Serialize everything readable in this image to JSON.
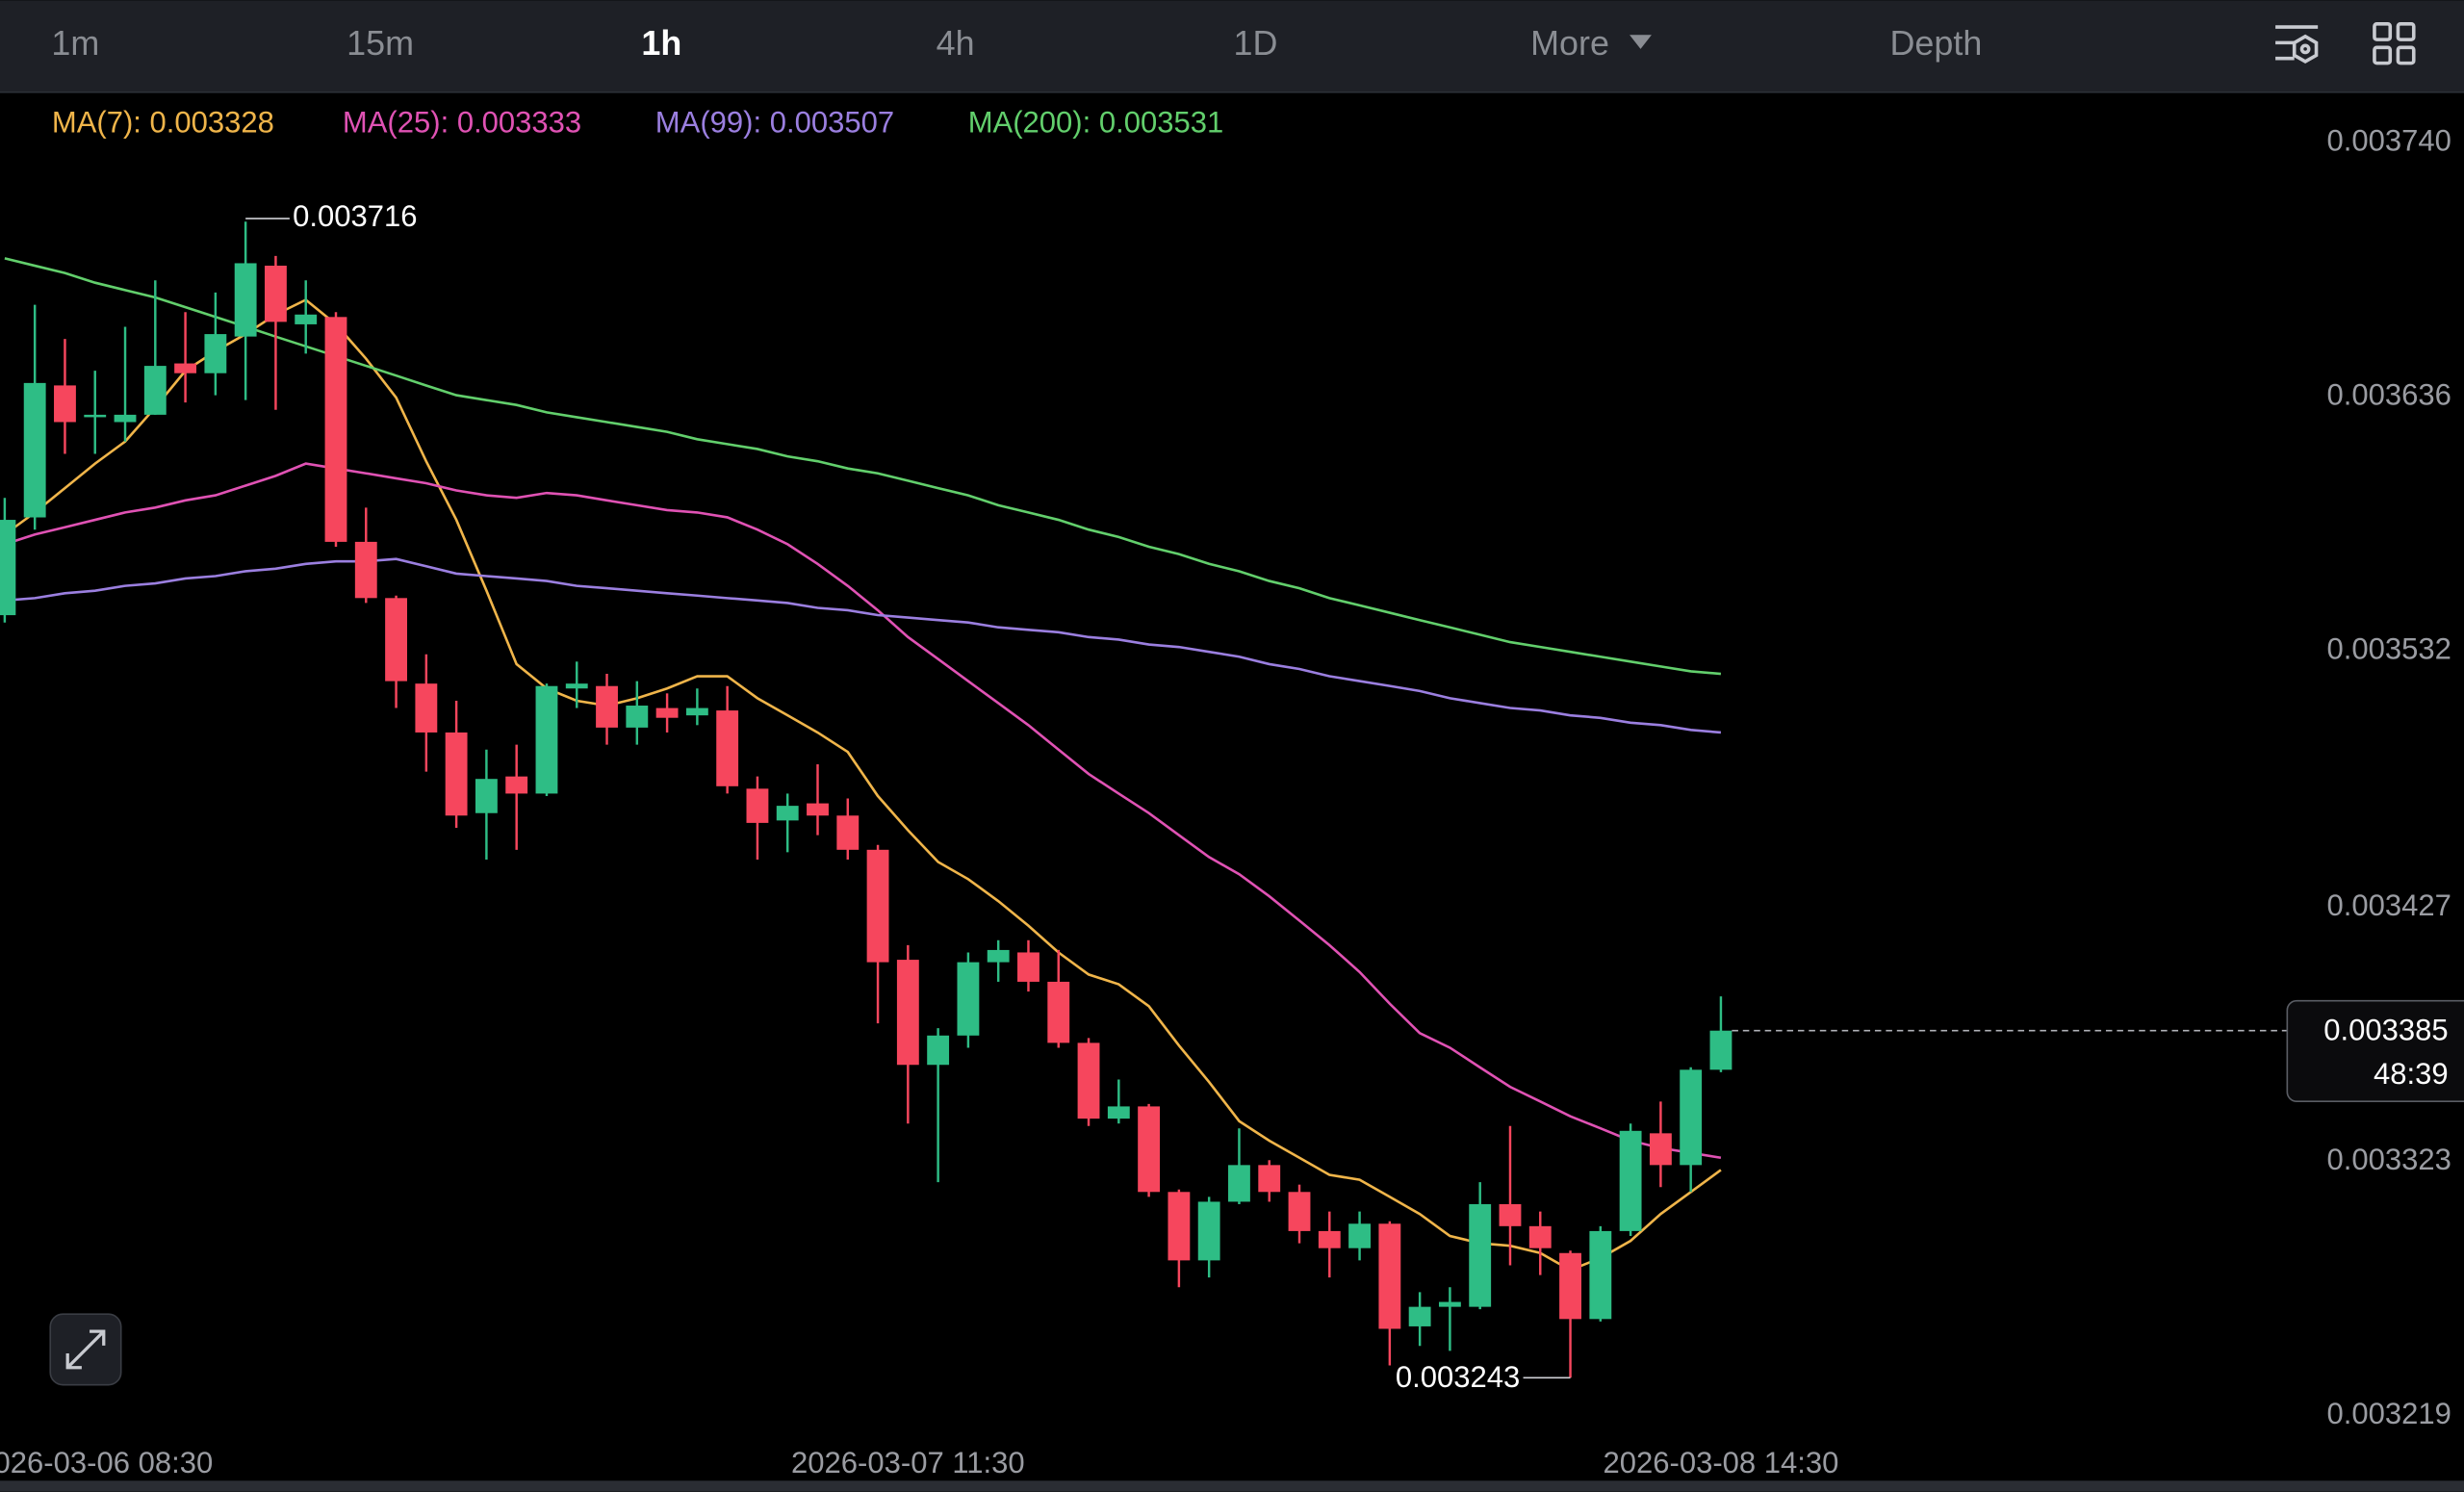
{
  "toolbar": {
    "tabs": [
      {
        "label": "1m"
      },
      {
        "label": "15m"
      },
      {
        "label": "1h",
        "selected": true
      },
      {
        "label": "4h"
      },
      {
        "label": "1D"
      },
      {
        "label": "More"
      },
      {
        "label": "Depth"
      }
    ]
  },
  "chart_data": {
    "type": "candlestick",
    "categories": [
      null,
      null,
      null,
      "2026-03-06 08:30",
      null,
      null,
      null,
      null,
      null,
      null,
      null,
      null,
      null,
      null,
      null,
      null,
      null,
      null,
      null,
      null,
      null,
      null,
      null,
      null,
      null,
      null,
      null,
      null,
      null,
      null,
      "2026-03-07 11:30",
      null,
      null,
      null,
      null,
      null,
      null,
      null,
      null,
      null,
      null,
      null,
      null,
      null,
      null,
      null,
      null,
      null,
      null,
      null,
      null,
      null,
      null,
      null,
      null,
      null,
      null,
      "2026-03-08 14:30"
    ],
    "open": [
      0.003555,
      0.003595,
      0.003649,
      0.003636,
      0.003634,
      0.003637,
      0.003658,
      0.003654,
      0.003669,
      0.003698,
      0.003674,
      0.003677,
      0.003585,
      0.003562,
      0.003527,
      0.003507,
      0.003474,
      0.003489,
      0.003482,
      0.003525,
      0.003526,
      0.003509,
      0.003517,
      0.003514,
      0.003516,
      0.003484,
      0.003471,
      0.003478,
      0.003473,
      0.003459,
      0.003414,
      0.003371,
      0.003383,
      0.003413,
      0.003417,
      0.003405,
      0.00338,
      0.003349,
      0.003354,
      0.003319,
      0.003291,
      0.003315,
      0.00333,
      0.003319,
      0.003303,
      0.003296,
      0.003306,
      0.003264,
      0.003272,
      0.003272,
      0.003314,
      0.003305,
      0.003294,
      0.003267,
      0.003303,
      0.003343,
      0.00333,
      0.003369
    ],
    "high": [
      0.003603,
      0.003682,
      0.003668,
      0.003655,
      0.003673,
      0.003692,
      0.003679,
      0.003687,
      0.003716,
      0.003702,
      0.003692,
      0.003679,
      0.003599,
      0.003563,
      0.003539,
      0.00352,
      0.0035,
      0.003502,
      0.003527,
      0.003536,
      0.003531,
      0.003528,
      0.003523,
      0.003525,
      0.003526,
      0.003489,
      0.003482,
      0.003494,
      0.00348,
      0.003461,
      0.00342,
      0.003386,
      0.003417,
      0.003422,
      0.003422,
      0.003418,
      0.003382,
      0.003365,
      0.003355,
      0.00332,
      0.003317,
      0.003345,
      0.003332,
      0.003322,
      0.003311,
      0.003311,
      0.003307,
      0.003278,
      0.00328,
      0.003323,
      0.003346,
      0.003311,
      0.003295,
      0.003305,
      0.003347,
      0.003356,
      0.00337,
      0.003399
    ],
    "low": [
      0.003552,
      0.00359,
      0.003621,
      0.003621,
      0.003626,
      0.003637,
      0.003642,
      0.003645,
      0.003643,
      0.003639,
      0.003662,
      0.003583,
      0.00356,
      0.003517,
      0.003491,
      0.003468,
      0.003455,
      0.003459,
      0.003481,
      0.003517,
      0.003502,
      0.003502,
      0.003507,
      0.00351,
      0.003482,
      0.003455,
      0.003458,
      0.003465,
      0.003455,
      0.003388,
      0.003347,
      0.003323,
      0.003378,
      0.003405,
      0.003401,
      0.003378,
      0.003346,
      0.003347,
      0.003317,
      0.00328,
      0.003284,
      0.003314,
      0.003315,
      0.003298,
      0.003284,
      0.003291,
      0.003248,
      0.003256,
      0.003254,
      0.003271,
      0.003289,
      0.003285,
      0.003243,
      0.003266,
      0.003301,
      0.003321,
      0.003319,
      0.003368
    ],
    "close": [
      0.003594,
      0.00365,
      0.003634,
      0.003637,
      0.003637,
      0.003657,
      0.003654,
      0.00367,
      0.003699,
      0.003675,
      0.003678,
      0.003585,
      0.003562,
      0.003528,
      0.003507,
      0.003473,
      0.003488,
      0.003482,
      0.003526,
      0.003527,
      0.003509,
      0.003518,
      0.003513,
      0.003517,
      0.003485,
      0.00347,
      0.003477,
      0.003473,
      0.003459,
      0.003413,
      0.003371,
      0.003383,
      0.003413,
      0.003418,
      0.003405,
      0.00338,
      0.003349,
      0.003354,
      0.003319,
      0.003291,
      0.003315,
      0.00333,
      0.003319,
      0.003303,
      0.003296,
      0.003306,
      0.003263,
      0.003272,
      0.003274,
      0.003314,
      0.003305,
      0.003296,
      0.003267,
      0.003303,
      0.003344,
      0.00333,
      0.003369,
      0.003385
    ],
    "up_color": "#2ebd85",
    "down_color": "#f6465d",
    "series": [
      {
        "name": "MA(7): 0.003328",
        "color": "#f0b54a",
        "values": [
          0.003588,
          0.003597,
          0.003607,
          0.003617,
          0.003626,
          0.00364,
          0.003655,
          0.003663,
          0.00367,
          0.003678,
          0.003684,
          0.003674,
          0.00366,
          0.003644,
          0.003618,
          0.003594,
          0.003565,
          0.003535,
          0.003525,
          0.00352,
          0.003518,
          0.003521,
          0.003525,
          0.00353,
          0.00353,
          0.003521,
          0.003514,
          0.003507,
          0.003499,
          0.003481,
          0.003467,
          0.003454,
          0.003447,
          0.003438,
          0.003428,
          0.003417,
          0.003408,
          0.003404,
          0.003395,
          0.003379,
          0.003364,
          0.003348,
          0.00334,
          0.003333,
          0.003326,
          0.003324,
          0.003317,
          0.00331,
          0.003301,
          0.003298,
          0.003297,
          0.003294,
          0.003287,
          0.003292,
          0.003299,
          0.00331,
          0.003319,
          0.003328
        ]
      },
      {
        "name": "MA(25): 0.003333",
        "color": "#e052b4",
        "values": [
          0.003584,
          0.003588,
          0.003591,
          0.003594,
          0.003597,
          0.003599,
          0.003602,
          0.003604,
          0.003608,
          0.003612,
          0.003617,
          0.003615,
          0.003613,
          0.003611,
          0.003609,
          0.003606,
          0.003604,
          0.003603,
          0.003605,
          0.003604,
          0.003602,
          0.0036,
          0.003598,
          0.003597,
          0.003595,
          0.00359,
          0.003584,
          0.003576,
          0.003567,
          0.003557,
          0.003546,
          0.003537,
          0.003528,
          0.003519,
          0.00351,
          0.0035,
          0.00349,
          0.003482,
          0.003474,
          0.003465,
          0.003456,
          0.003449,
          0.00344,
          0.00343,
          0.00342,
          0.003409,
          0.003396,
          0.003384,
          0.003378,
          0.00337,
          0.003362,
          0.003356,
          0.00335,
          0.003345,
          0.00334,
          0.003337,
          0.003335,
          0.003333
        ]
      },
      {
        "name": "MA(99): 0.003507",
        "color": "#9b7fe0",
        "values": [
          0.003561,
          0.003562,
          0.003564,
          0.003565,
          0.003567,
          0.003568,
          0.00357,
          0.003571,
          0.003573,
          0.003574,
          0.003576,
          0.003577,
          0.003577,
          0.003578,
          0.003575,
          0.003572,
          0.003571,
          0.00357,
          0.003569,
          0.003567,
          0.003566,
          0.003565,
          0.003564,
          0.003563,
          0.003562,
          0.003561,
          0.00356,
          0.003558,
          0.003557,
          0.003555,
          0.003554,
          0.003553,
          0.003552,
          0.00355,
          0.003549,
          0.003548,
          0.003546,
          0.003545,
          0.003543,
          0.003542,
          0.00354,
          0.003538,
          0.003535,
          0.003533,
          0.00353,
          0.003528,
          0.003526,
          0.003524,
          0.003521,
          0.003519,
          0.003517,
          0.003516,
          0.003514,
          0.003513,
          0.003511,
          0.00351,
          0.003508,
          0.003507
        ]
      },
      {
        "name": "MA(200): 0.003531",
        "color": "#62cf6c",
        "values": [
          0.003701,
          0.003698,
          0.003695,
          0.003691,
          0.003688,
          0.003685,
          0.003681,
          0.003677,
          0.003673,
          0.003669,
          0.003665,
          0.003661,
          0.003657,
          0.003653,
          0.003649,
          0.003645,
          0.003643,
          0.003641,
          0.003638,
          0.003636,
          0.003634,
          0.003632,
          0.00363,
          0.003627,
          0.003625,
          0.003623,
          0.00362,
          0.003618,
          0.003615,
          0.003613,
          0.00361,
          0.003607,
          0.003604,
          0.0036,
          0.003597,
          0.003594,
          0.00359,
          0.003587,
          0.003583,
          0.00358,
          0.003576,
          0.003573,
          0.003569,
          0.003566,
          0.003562,
          0.003559,
          0.003556,
          0.003553,
          0.00355,
          0.003547,
          0.003544,
          0.003542,
          0.00354,
          0.003538,
          0.003536,
          0.003534,
          0.003532,
          0.003531
        ]
      }
    ],
    "ylim": [
      0.003215,
      0.003768
    ],
    "yticks": [
      {
        "value": 0.00374,
        "label": "0.003740"
      },
      0.003636,
      0.003532,
      0.003427,
      0.003323,
      0.003219
    ],
    "countdown": "48:39"
  }
}
